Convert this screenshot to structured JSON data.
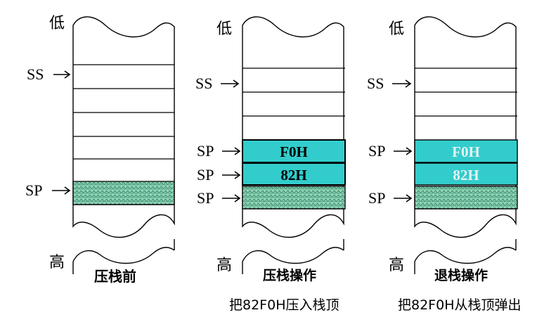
{
  "labels": {
    "low": "低",
    "high": "高",
    "ss": "SS",
    "sp": "SP"
  },
  "stacks": [
    {
      "caption": "压栈前",
      "subcaption": "",
      "cells": [
        "",
        "",
        "",
        "",
        "",
        "",
        ""
      ]
    },
    {
      "caption": "压栈操作",
      "subcaption": "把82F0H压入栈顶",
      "cells": [
        "",
        "",
        "",
        "F0H",
        "82H",
        ""
      ]
    },
    {
      "caption": "退栈操作",
      "subcaption": "把82F0H从栈顶弹出",
      "cells": [
        "",
        "",
        "",
        "F0H",
        "82H",
        ""
      ]
    }
  ],
  "colors": {
    "filled_cell": "#33cccc",
    "hatched_cell": "#7fc9a8",
    "pushed_text": "#000000",
    "popped_text": "#e6f2f2"
  }
}
